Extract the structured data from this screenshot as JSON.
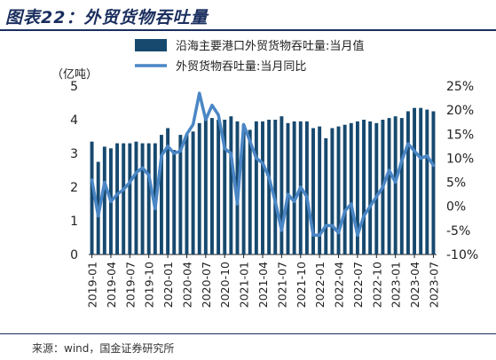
{
  "figure_label": "图表22：外贸货物吞吐量",
  "source": "来源：wind，国金证券研究所",
  "chart_data": {
    "type": "bar",
    "unit_label": "（亿吨）",
    "categories": [
      "2019-01",
      "2019-02",
      "2019-03",
      "2019-04",
      "2019-05",
      "2019-06",
      "2019-07",
      "2019-08",
      "2019-09",
      "2019-10",
      "2019-11",
      "2019-12",
      "2020-01",
      "2020-02",
      "2020-03",
      "2020-04",
      "2020-05",
      "2020-06",
      "2020-07",
      "2020-08",
      "2020-09",
      "2020-10",
      "2020-11",
      "2020-12",
      "2021-01",
      "2021-02",
      "2021-03",
      "2021-04",
      "2021-05",
      "2021-06",
      "2021-07",
      "2021-08",
      "2021-09",
      "2021-10",
      "2021-11",
      "2021-12",
      "2022-01",
      "2022-02",
      "2022-03",
      "2022-04",
      "2022-05",
      "2022-06",
      "2022-07",
      "2022-08",
      "2022-09",
      "2022-10",
      "2022-11",
      "2022-12",
      "2023-01",
      "2023-02",
      "2023-03",
      "2023-04",
      "2023-05",
      "2023-06",
      "2023-07"
    ],
    "x_tick_labels": [
      "2019-01",
      "2019-04",
      "2019-07",
      "2019-10",
      "2020-01",
      "2020-04",
      "2020-07",
      "2020-10",
      "2021-01",
      "2021-04",
      "2021-07",
      "2021-10",
      "2022-01",
      "2022-04",
      "2022-07",
      "2022-10",
      "2023-01",
      "2023-04",
      "2023-07"
    ],
    "series": [
      {
        "name": "沿海主要港口外贸货物吞吐量:当月值",
        "type": "bar",
        "axis": "left",
        "color": "#17496f",
        "values": [
          3.35,
          2.75,
          3.2,
          3.15,
          3.3,
          3.3,
          3.3,
          3.35,
          3.3,
          3.3,
          3.3,
          3.55,
          3.75,
          3.1,
          3.55,
          3.55,
          3.65,
          3.9,
          4.1,
          4.05,
          4.0,
          4.0,
          4.1,
          3.95,
          3.85,
          3.7,
          3.95,
          3.95,
          4.0,
          4.0,
          4.1,
          3.9,
          3.95,
          3.95,
          3.95,
          3.75,
          3.8,
          3.45,
          3.75,
          3.8,
          3.85,
          3.9,
          3.95,
          4.0,
          3.95,
          3.9,
          4.0,
          4.05,
          4.1,
          4.05,
          4.25,
          4.35,
          4.35,
          4.3,
          4.25
        ]
      },
      {
        "name": "外贸货物吞吐量:当月同比",
        "type": "line",
        "axis": "right",
        "color": "#4a86c5",
        "values": [
          5.5,
          -2,
          5,
          1,
          2.5,
          3.5,
          5,
          7,
          8,
          6.5,
          -0.5,
          10.5,
          12.5,
          11,
          11.5,
          15,
          17,
          23.5,
          18,
          21,
          19,
          12,
          11,
          0.5,
          17,
          13.5,
          10,
          9,
          6,
          1,
          -5,
          2.5,
          1,
          4,
          2,
          -6,
          -6,
          -4,
          -4,
          -5.5,
          -1,
          0.5,
          -6,
          -2,
          0,
          2,
          4,
          7.5,
          5,
          9.5,
          13,
          11.5,
          10,
          10.5,
          8.5
        ]
      }
    ],
    "y_left": {
      "min": 0,
      "max": 5,
      "ticks": [
        "0",
        "1",
        "2",
        "3",
        "4",
        "5"
      ]
    },
    "y_right": {
      "min": -10,
      "max": 25,
      "ticks": [
        "-10%",
        "-5%",
        "0%",
        "5%",
        "10%",
        "15%",
        "20%",
        "25%"
      ]
    },
    "legend_position": "top-center",
    "grid": false
  }
}
